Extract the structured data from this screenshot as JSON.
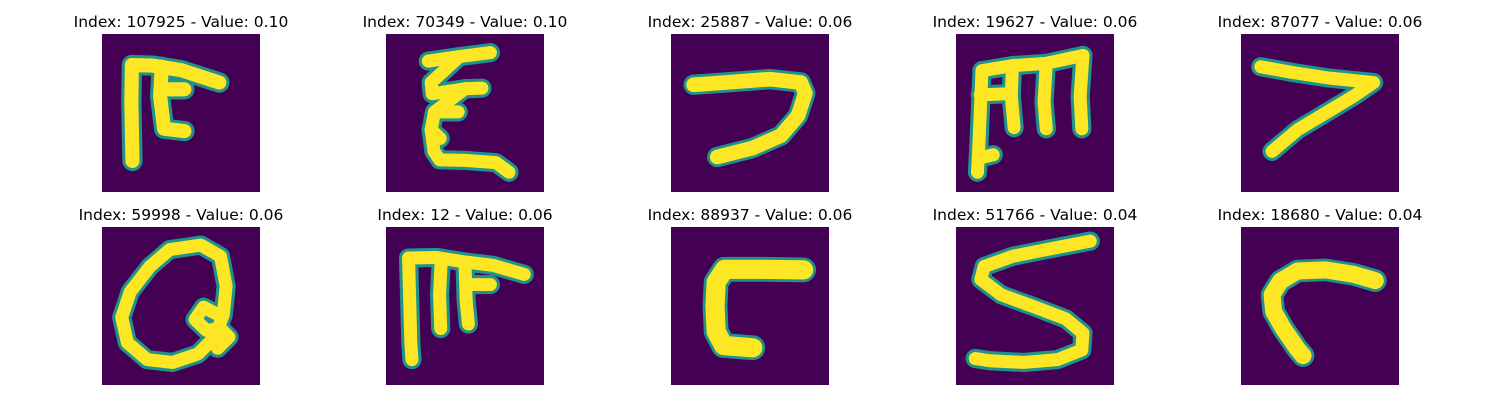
{
  "colors": {
    "background": "#440154",
    "stroke_core": "#fde725",
    "stroke_edge": "#21918c"
  },
  "panels": [
    {
      "title": "Index: 107925 - Value: 0.10"
    },
    {
      "title": "Index: 70349 - Value: 0.10"
    },
    {
      "title": "Index: 25887 - Value: 0.06"
    },
    {
      "title": "Index: 19627 - Value: 0.06"
    },
    {
      "title": "Index: 87077 - Value: 0.06"
    },
    {
      "title": "Index: 59998 - Value: 0.06"
    },
    {
      "title": "Index: 12 - Value: 0.06"
    },
    {
      "title": "Index: 88937 - Value: 0.06"
    },
    {
      "title": "Index: 51766 - Value: 0.04"
    },
    {
      "title": "Index: 18680 - Value: 0.04"
    }
  ]
}
